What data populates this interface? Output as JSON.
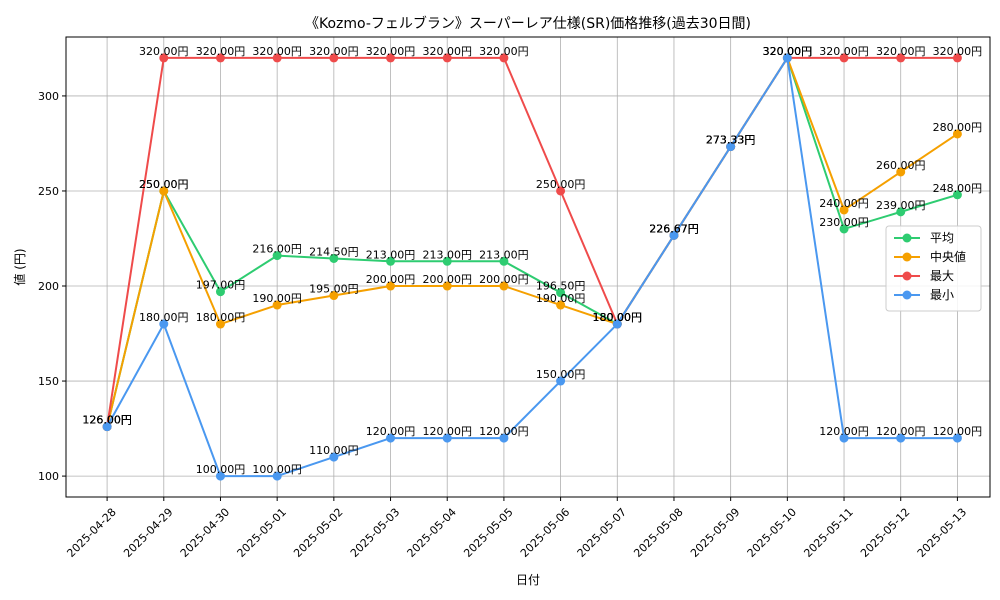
{
  "chart_data": {
    "type": "line",
    "title": "《Kozmo-フェルブラン》スーパーレア仕様(SR)価格推移(過去30日間)",
    "xlabel": "日付",
    "ylabel": "値 (円)",
    "ylim": [
      89,
      331
    ],
    "yticks": [
      100,
      150,
      200,
      250,
      300
    ],
    "grid": true,
    "legend_position": "center-right",
    "label_suffix": "円",
    "categories": [
      "2025-04-28",
      "2025-04-29",
      "2025-04-30",
      "2025-05-01",
      "2025-05-02",
      "2025-05-03",
      "2025-05-04",
      "2025-05-05",
      "2025-05-06",
      "2025-05-07",
      "2025-05-08",
      "2025-05-09",
      "2025-05-10",
      "2025-05-11",
      "2025-05-12",
      "2025-05-13"
    ],
    "series": [
      {
        "name": "平均",
        "color": "#2ecc71",
        "values": [
          126.0,
          250.0,
          197.0,
          216.0,
          214.5,
          213.0,
          213.0,
          213.0,
          196.5,
          180.0,
          226.67,
          273.33,
          320.0,
          230.0,
          239.0,
          248.0
        ]
      },
      {
        "name": "中央値",
        "color": "#f5a000",
        "values": [
          126.0,
          250.0,
          180.0,
          190.0,
          195.0,
          200.0,
          200.0,
          200.0,
          190.0,
          180.0,
          226.67,
          273.33,
          320.0,
          240.0,
          260.0,
          280.0
        ]
      },
      {
        "name": "最大",
        "color": "#ef4b4b",
        "values": [
          126.0,
          320.0,
          320.0,
          320.0,
          320.0,
          320.0,
          320.0,
          320.0,
          250.0,
          180.0,
          226.67,
          273.33,
          320.0,
          320.0,
          320.0,
          320.0
        ]
      },
      {
        "name": "最小",
        "color": "#4a98f0",
        "values": [
          126.0,
          180.0,
          100.0,
          100.0,
          110.0,
          120.0,
          120.0,
          120.0,
          150.0,
          180.0,
          226.67,
          273.33,
          320.0,
          120.0,
          120.0,
          120.0
        ]
      }
    ]
  }
}
